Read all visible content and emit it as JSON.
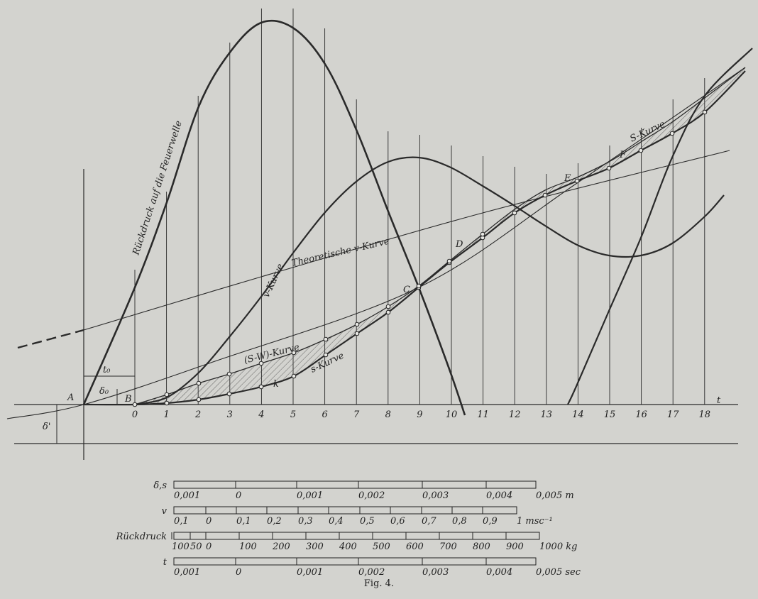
{
  "figure": {
    "curve_labels": {
      "rueckdruck": "Rückdruck auf die Feuerwelle",
      "v": "v-Kurve",
      "v_theory": "Theoretische v-Kurve",
      "s_minus_w": "(S-W)-Kurve",
      "s": "s-Kurve",
      "S": "S-Kurve",
      "k": "k"
    },
    "points": {
      "A": "A",
      "B": "B",
      "C": "C",
      "D": "D",
      "E": "E",
      "F": "F"
    },
    "marks": {
      "t0": "t₀",
      "delta0": "δ₀",
      "delta_prime": "δ'",
      "t": "t"
    },
    "t_labels": [
      "0",
      "1",
      "2",
      "3",
      "4",
      "5",
      "6",
      "7",
      "8",
      "9",
      "10",
      "11",
      "12",
      "13",
      "14",
      "15",
      "16",
      "17",
      "18"
    ],
    "scales": [
      {
        "name": "δ,s",
        "labels": [
          "0,001",
          "0",
          "0,001",
          "0,002",
          "0,003",
          "0,004",
          "0,005 m"
        ]
      },
      {
        "name": "v",
        "labels": [
          "0,1",
          "0",
          "0,1",
          "0,2",
          "0,3",
          "0,4",
          "0,5",
          "0,6",
          "0,7",
          "0,8",
          "0,9",
          "1 msc⁻¹"
        ]
      },
      {
        "name": "Rückdruck",
        "labels": [
          "100",
          "50",
          "0",
          "100",
          "200",
          "300",
          "400",
          "500",
          "600",
          "700",
          "800",
          "900",
          "1000 kg"
        ]
      },
      {
        "name": "t",
        "labels": [
          "0,001",
          "0",
          "0,001",
          "0,002",
          "0,003",
          "0,004",
          "0,005 sec"
        ]
      }
    ],
    "caption": "Fig. 4."
  }
}
